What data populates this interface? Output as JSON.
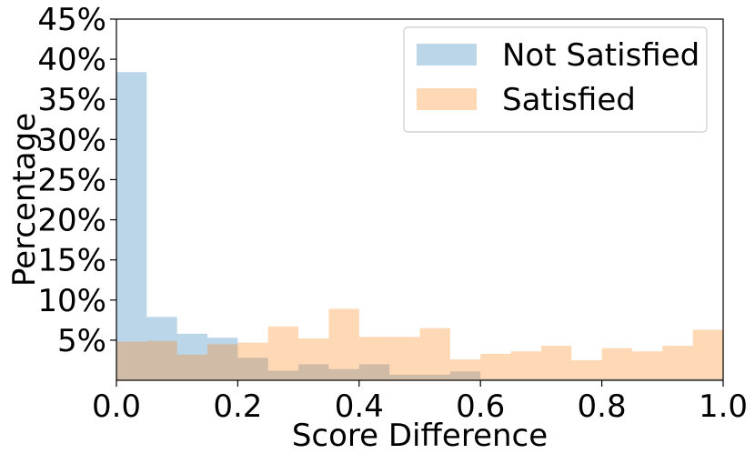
{
  "chart_data": {
    "type": "histogram",
    "title": "",
    "xlabel": "Score Difference",
    "ylabel": "Percentage",
    "xlim": [
      0.0,
      1.0
    ],
    "ylim": [
      0,
      45
    ],
    "x_ticks": [
      "0.0",
      "0.2",
      "0.4",
      "0.6",
      "0.8",
      "1.0"
    ],
    "y_ticks": [
      "5%",
      "10%",
      "15%",
      "20%",
      "25%",
      "30%",
      "35%",
      "40%",
      "45%"
    ],
    "grid": false,
    "legend_position": "top-right",
    "bin_edges": [
      0.0,
      0.05,
      0.1,
      0.15,
      0.2,
      0.25,
      0.3,
      0.35,
      0.4,
      0.45,
      0.5,
      0.55,
      0.6,
      0.65,
      0.7,
      0.75,
      0.8,
      0.85,
      0.9,
      0.95,
      1.0
    ],
    "series": [
      {
        "name": "Not Satisfied",
        "color": "#1f77b4",
        "opacity": 0.3,
        "values": [
          38.4,
          7.9,
          5.8,
          5.3,
          2.8,
          1.2,
          2.0,
          1.4,
          2.0,
          0.7,
          0.7,
          1.1,
          0.2,
          0.2,
          0.2,
          0.2,
          0.2,
          0.2,
          0.2,
          0.2
        ]
      },
      {
        "name": "Satisfied",
        "color": "#ff7f0e",
        "opacity": 0.3,
        "values": [
          4.8,
          4.9,
          3.2,
          4.5,
          4.7,
          6.7,
          5.2,
          8.9,
          5.4,
          5.4,
          6.5,
          2.6,
          3.3,
          3.6,
          4.3,
          2.5,
          4.0,
          3.6,
          4.3,
          6.3
        ]
      }
    ]
  }
}
